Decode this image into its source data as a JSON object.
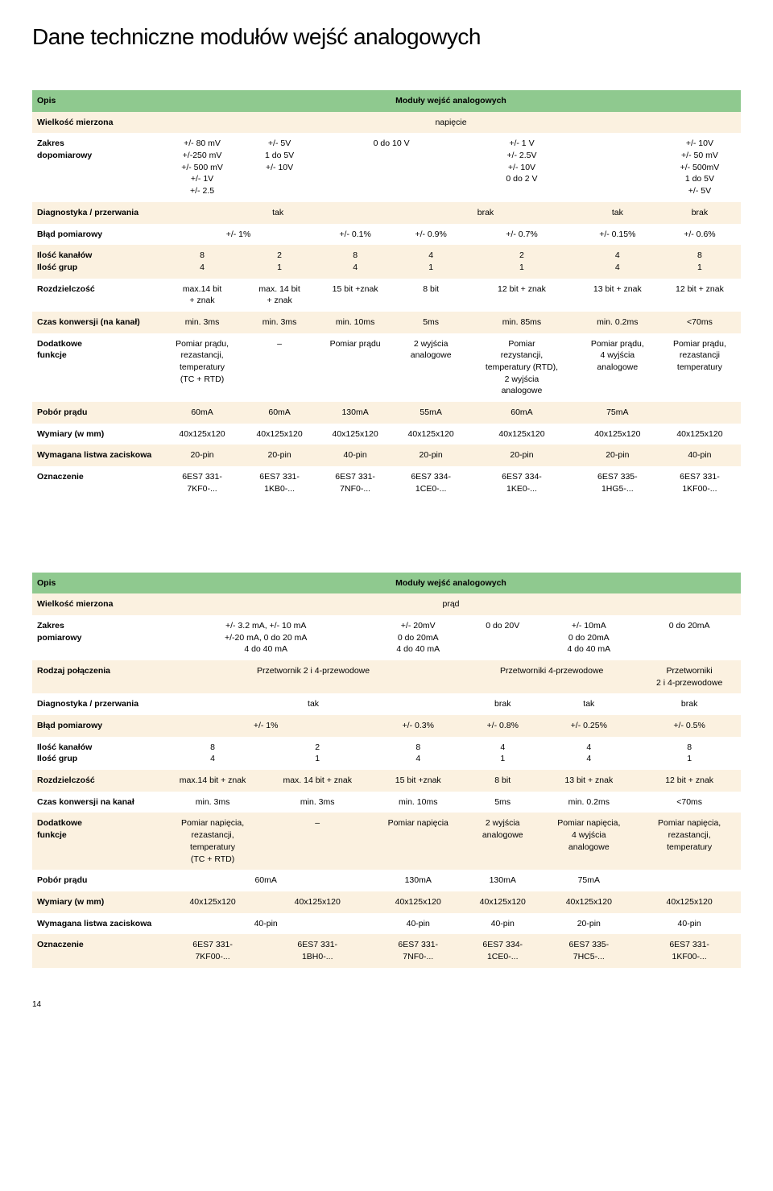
{
  "page_title": "Dane techniczne modułów wejść analogowych",
  "page_number": "14",
  "colors": {
    "header_bg": "#8fc98f",
    "alt_bg": "#fbf1e0",
    "text": "#000000",
    "bg": "#ffffff"
  },
  "table1": {
    "opis": "Opis",
    "modul_header": "Moduły wejść analogowych",
    "wielkosc_label": "Wielkość mierzona",
    "wielkosc_value": "napięcie",
    "zakres_label": "Zakres\ndopomiarowy",
    "zakres": [
      "+/- 80 mV\n+/-250 mV\n+/- 500 mV\n+/- 1V\n+/- 2.5",
      "+/- 5V\n1 do 5V\n+/- 10V",
      "0 do 10 V",
      "",
      "+/- 1 V\n+/- 2.5V\n+/- 10V\n0 do 2 V",
      "",
      "+/- 10V\n+/- 50 mV\n+/- 500mV\n1 do 5V\n+/- 5V"
    ],
    "diag_label": "Diagnostyka / przerwania",
    "diag": [
      "tak",
      "",
      "",
      "brak",
      "",
      "tak",
      "brak"
    ],
    "blad_label": "Błąd pomiarowy",
    "blad": [
      "+/- 1%",
      "",
      "+/- 0.1%",
      "+/- 0.9%",
      "+/- 0.7%",
      "+/- 0.15%",
      "+/- 0.6%"
    ],
    "ilosc_label": "Ilość kanałów\nIlość grup",
    "ilosc": [
      "8\n4",
      "2\n1",
      "8\n4",
      "4\n1",
      "2\n1",
      "4\n4",
      "8\n1"
    ],
    "rozdz_label": "Rozdzielczość",
    "rozdz": [
      "max.14 bit\n+ znak",
      "max. 14 bit\n+ znak",
      "15 bit +znak",
      "8 bit",
      "12 bit + znak",
      "13 bit + znak",
      "12 bit + znak"
    ],
    "czas_label": "Czas konwersji (na kanał)",
    "czas": [
      "min. 3ms",
      "min. 3ms",
      "min. 10ms",
      "5ms",
      "min. 85ms",
      "min. 0.2ms",
      "<70ms"
    ],
    "dodat_label": "Dodatkowe\nfunkcje",
    "dodat": [
      "Pomiar prądu,\nrezastancji,\ntemperatury\n(TC + RTD)",
      "–",
      "Pomiar prądu",
      "2 wyjścia\nanalogowe",
      "Pomiar\nrezystancji,\ntemperatury (RTD),\n2 wyjścia\nanalogowe",
      "Pomiar prądu,\n4 wyjścia\nanalogowe",
      "Pomiar prądu,\nrezastancji\ntemperatury"
    ],
    "pobor_label": "Pobór prądu",
    "pobor": [
      "60mA",
      "60mA",
      "130mA",
      "55mA",
      "60mA",
      "75mA",
      ""
    ],
    "wym_label": "Wymiary (w mm)",
    "wym": [
      "40x125x120",
      "40x125x120",
      "40x125x120",
      "40x125x120",
      "40x125x120",
      "40x125x120",
      "40x125x120"
    ],
    "listwa_label": "Wymagana listwa zaciskowa",
    "listwa": [
      "20-pin",
      "20-pin",
      "40-pin",
      "20-pin",
      "20-pin",
      "20-pin",
      "40-pin"
    ],
    "ozn_label": "Oznaczenie",
    "ozn": [
      "6ES7 331-\n7KF0-...",
      "6ES7 331-\n1KB0-...",
      "6ES7 331-\n7NF0-...",
      "6ES7 334-\n1CE0-...",
      "6ES7 334-\n1KE0-...",
      "6ES7 335-\n1HG5-...",
      "6ES7 331-\n1KF00-..."
    ]
  },
  "table2": {
    "opis": "Opis",
    "modul_header": "Moduły wejść analogowych",
    "wielkosc_label": "Wielkość mierzona",
    "wielkosc_value": "prąd",
    "zakres_label": "Zakres\npomiarowy",
    "zakres": [
      "+/- 3.2 mA, +/- 10 mA\n+/-20 mA, 0 do 20 mA\n4 do 40 mA",
      "",
      "+/- 20mV\n0 do 20mA\n4 do 40 mA",
      "0 do 20V",
      "+/- 10mA\n0 do 20mA\n4 do 40 mA",
      "0 do 20mA"
    ],
    "rodzaj_label": "Rodzaj połączenia",
    "rodzaj": [
      "Przetwornik 2 i 4-przewodowe",
      "",
      "",
      "Przetworniki 4-przewodowe",
      "",
      "Przetworniki\n2 i 4-przewodowe"
    ],
    "diag_label": "Diagnostyka / przerwania",
    "diag": [
      "tak",
      "",
      "",
      "brak",
      "tak",
      "brak"
    ],
    "blad_label": "Błąd pomiarowy",
    "blad": [
      "+/- 1%",
      "",
      "+/- 0.3%",
      "+/- 0.8%",
      "+/- 0.25%",
      "+/- 0.5%"
    ],
    "ilosc_label": "Ilość kanałów\nIlość grup",
    "ilosc": [
      "8\n4",
      "2\n1",
      "8\n4",
      "4\n1",
      "4\n4",
      "8\n1"
    ],
    "rozdz_label": "Rozdzielczość",
    "rozdz": [
      "max.14 bit + znak",
      "max. 14 bit + znak",
      "15 bit +znak",
      "8 bit",
      "13 bit + znak",
      "12 bit + znak"
    ],
    "czas_label": "Czas konwersji na kanał",
    "czas": [
      "min. 3ms",
      "min. 3ms",
      "min. 10ms",
      "5ms",
      "min. 0.2ms",
      "<70ms"
    ],
    "dodat_label": "Dodatkowe\nfunkcje",
    "dodat": [
      "Pomiar napięcia,\nrezastancji,\ntemperatury\n(TC + RTD)",
      "–",
      "Pomiar napięcia",
      "2 wyjścia\nanalogowe",
      "Pomiar napięcia,\n4 wyjścia\nanalogowe",
      "Pomiar napięcia,\nrezastancji,\ntemperatury"
    ],
    "pobor_label": "Pobór prądu",
    "pobor": [
      "60mA",
      "",
      "130mA",
      "130mA",
      "75mA",
      ""
    ],
    "wym_label": "Wymiary (w mm)",
    "wym": [
      "40x125x120",
      "40x125x120",
      "40x125x120",
      "40x125x120",
      "40x125x120",
      "40x125x120"
    ],
    "listwa_label": "Wymagana listwa zaciskowa",
    "listwa": [
      "40-pin",
      "",
      "40-pin",
      "40-pin",
      "20-pin",
      "40-pin"
    ],
    "ozn_label": "Oznaczenie",
    "ozn": [
      "6ES7 331-\n7KF00-...",
      "6ES7 331-\n1BH0-...",
      "6ES7 331-\n7NF0-...",
      "6ES7 334-\n1CE0-...",
      "6ES7 335-\n7HC5-...",
      "6ES7 331-\n1KF00-..."
    ]
  }
}
